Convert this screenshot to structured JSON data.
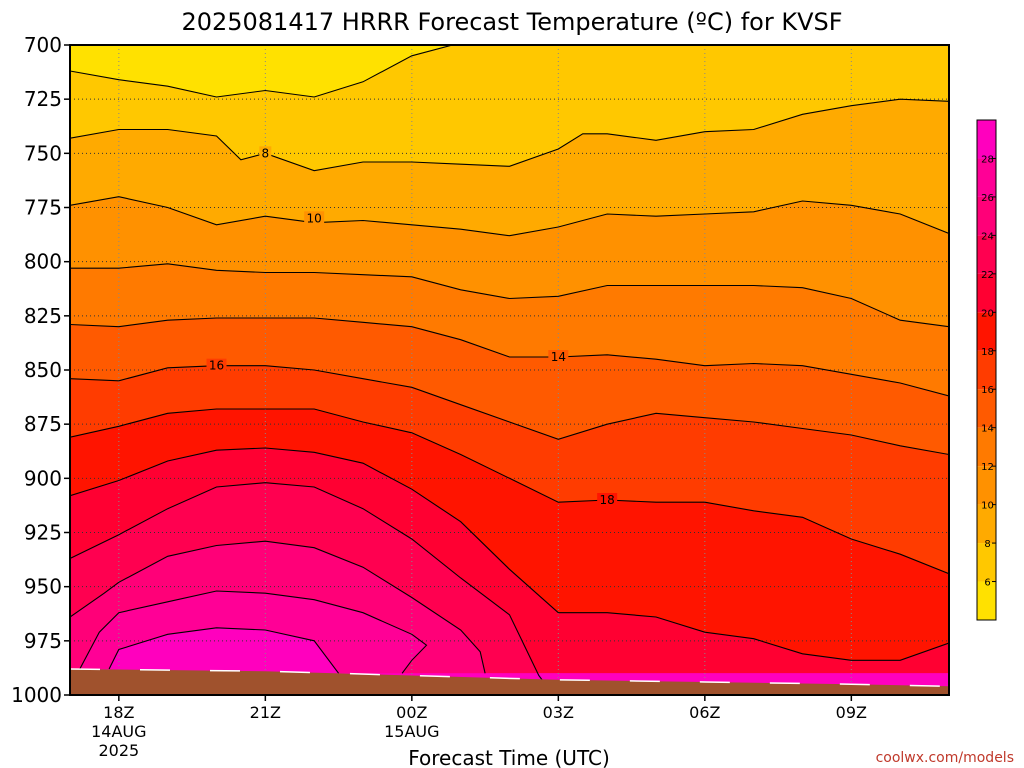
{
  "chart_data": {
    "type": "contour",
    "title": "2025081417 HRRR Forecast Temperature (ºC) for KVSF",
    "xlabel": "Forecast Time (UTC)",
    "ylabel": "",
    "credit": "coolwx.com/models",
    "y_axis": {
      "ticks": [
        700,
        725,
        750,
        775,
        800,
        825,
        850,
        875,
        900,
        925,
        950,
        975,
        1000
      ],
      "range": [
        700,
        1000
      ],
      "inverted": true
    },
    "x_axis": {
      "range_hours": [
        -1,
        17
      ],
      "ticks": [
        {
          "hour": 0,
          "label": "18Z",
          "sub1": "14AUG",
          "sub2": "2025"
        },
        {
          "hour": 3,
          "label": "21Z",
          "sub1": "",
          "sub2": ""
        },
        {
          "hour": 6,
          "label": "00Z",
          "sub1": "15AUG",
          "sub2": ""
        },
        {
          "hour": 9,
          "label": "03Z",
          "sub1": "",
          "sub2": ""
        },
        {
          "hour": 12,
          "label": "06Z",
          "sub1": "",
          "sub2": ""
        },
        {
          "hour": 15,
          "label": "09Z",
          "sub1": "",
          "sub2": ""
        }
      ]
    },
    "grid": true,
    "colorbar": {
      "ticks": [
        6,
        8,
        10,
        12,
        14,
        16,
        18,
        20,
        22,
        24,
        26,
        28
      ],
      "range": [
        4,
        30
      ],
      "levels": [
        {
          "min": 4,
          "max": 6,
          "color": "#ffe100"
        },
        {
          "min": 6,
          "max": 8,
          "color": "#ffc800"
        },
        {
          "min": 8,
          "max": 10,
          "color": "#ffaa00"
        },
        {
          "min": 10,
          "max": 12,
          "color": "#ff9100"
        },
        {
          "min": 12,
          "max": 14,
          "color": "#ff7a00"
        },
        {
          "min": 14,
          "max": 16,
          "color": "#ff5a00"
        },
        {
          "min": 16,
          "max": 18,
          "color": "#ff3c00"
        },
        {
          "min": 18,
          "max": 20,
          "color": "#ff1400"
        },
        {
          "min": 20,
          "max": 22,
          "color": "#ff0032"
        },
        {
          "min": 22,
          "max": 24,
          "color": "#ff0050"
        },
        {
          "min": 24,
          "max": 26,
          "color": "#ff0078"
        },
        {
          "min": 26,
          "max": 28,
          "color": "#ff0096"
        },
        {
          "min": 28,
          "max": 30,
          "color": "#ff00be"
        }
      ]
    },
    "isotherms": [
      {
        "value": 6,
        "points": [
          [
            -1,
            712
          ],
          [
            0,
            716
          ],
          [
            1,
            719
          ],
          [
            2,
            724
          ],
          [
            3,
            721
          ],
          [
            4,
            724
          ],
          [
            5,
            717
          ],
          [
            6,
            705
          ],
          [
            7,
            699
          ]
        ]
      },
      {
        "value": 8,
        "labeled": true,
        "label_at": [
          3,
          750
        ],
        "points": [
          [
            -1,
            743
          ],
          [
            0,
            739
          ],
          [
            1,
            739
          ],
          [
            2,
            742
          ],
          [
            2.5,
            753
          ],
          [
            3,
            750
          ],
          [
            4,
            758
          ],
          [
            5,
            754
          ],
          [
            6,
            754
          ],
          [
            7,
            755
          ],
          [
            8,
            756
          ],
          [
            9,
            748
          ],
          [
            9.5,
            741
          ],
          [
            10,
            741
          ],
          [
            11,
            744
          ],
          [
            12,
            740
          ],
          [
            13,
            739
          ],
          [
            14,
            732
          ],
          [
            15,
            728
          ],
          [
            16,
            725
          ],
          [
            17,
            726
          ]
        ]
      },
      {
        "value": 10,
        "labeled": true,
        "label_at": [
          4,
          780
        ],
        "points": [
          [
            -1,
            774
          ],
          [
            0,
            770
          ],
          [
            1,
            775
          ],
          [
            2,
            783
          ],
          [
            3,
            779
          ],
          [
            4,
            782
          ],
          [
            5,
            781
          ],
          [
            6,
            783
          ],
          [
            7,
            785
          ],
          [
            8,
            788
          ],
          [
            9,
            784
          ],
          [
            10,
            778
          ],
          [
            11,
            779
          ],
          [
            12,
            778
          ],
          [
            13,
            777
          ],
          [
            14,
            772
          ],
          [
            15,
            774
          ],
          [
            16,
            778
          ],
          [
            17,
            787
          ]
        ]
      },
      {
        "value": 12,
        "points": [
          [
            -1,
            803
          ],
          [
            0,
            803
          ],
          [
            1,
            801
          ],
          [
            2,
            804
          ],
          [
            3,
            805
          ],
          [
            4,
            805
          ],
          [
            5,
            806
          ],
          [
            6,
            807
          ],
          [
            7,
            813
          ],
          [
            8,
            817
          ],
          [
            9,
            816
          ],
          [
            10,
            811
          ],
          [
            11,
            811
          ],
          [
            12,
            811
          ],
          [
            13,
            811
          ],
          [
            14,
            812
          ],
          [
            15,
            817
          ],
          [
            16,
            827
          ],
          [
            17,
            830
          ]
        ]
      },
      {
        "value": 14,
        "labeled": true,
        "label_at": [
          9,
          844
        ],
        "points": [
          [
            -1,
            829
          ],
          [
            0,
            830
          ],
          [
            1,
            827
          ],
          [
            2,
            826
          ],
          [
            3,
            826
          ],
          [
            4,
            826
          ],
          [
            5,
            828
          ],
          [
            6,
            830
          ],
          [
            7,
            836
          ],
          [
            8,
            844
          ],
          [
            9,
            844
          ],
          [
            10,
            843
          ],
          [
            11,
            845
          ],
          [
            12,
            848
          ],
          [
            13,
            847
          ],
          [
            14,
            848
          ],
          [
            15,
            852
          ],
          [
            16,
            856
          ],
          [
            17,
            862
          ]
        ]
      },
      {
        "value": 16,
        "labeled": true,
        "label_at": [
          2,
          848
        ],
        "points": [
          [
            -1,
            854
          ],
          [
            0,
            855
          ],
          [
            1,
            849
          ],
          [
            2,
            848
          ],
          [
            3,
            848
          ],
          [
            4,
            850
          ],
          [
            5,
            854
          ],
          [
            6,
            858
          ],
          [
            7,
            866
          ],
          [
            8,
            874
          ],
          [
            9,
            882
          ],
          [
            10,
            875
          ],
          [
            11,
            870
          ],
          [
            12,
            872
          ],
          [
            13,
            874
          ],
          [
            14,
            877
          ],
          [
            15,
            880
          ],
          [
            16,
            885
          ],
          [
            17,
            889
          ]
        ]
      },
      {
        "value": 18,
        "labeled": true,
        "label_at": [
          10,
          910
        ],
        "points": [
          [
            -1,
            881
          ],
          [
            0,
            876
          ],
          [
            1,
            870
          ],
          [
            2,
            868
          ],
          [
            3,
            868
          ],
          [
            4,
            868
          ],
          [
            5,
            874
          ],
          [
            6,
            879
          ],
          [
            7,
            889
          ],
          [
            8,
            900
          ],
          [
            9,
            911
          ],
          [
            10,
            910
          ],
          [
            11,
            911
          ],
          [
            12,
            911
          ],
          [
            13,
            915
          ],
          [
            14,
            918
          ],
          [
            15,
            928
          ],
          [
            16,
            935
          ],
          [
            17,
            944
          ]
        ]
      },
      {
        "value": 20,
        "points": [
          [
            -1,
            908
          ],
          [
            0,
            901
          ],
          [
            1,
            892
          ],
          [
            2,
            887
          ],
          [
            3,
            886
          ],
          [
            4,
            888
          ],
          [
            5,
            893
          ],
          [
            6,
            905
          ],
          [
            7,
            920
          ],
          [
            8,
            942
          ],
          [
            9,
            962
          ],
          [
            10,
            962
          ],
          [
            11,
            964
          ],
          [
            12,
            971
          ],
          [
            13,
            974
          ],
          [
            14,
            981
          ],
          [
            15,
            984
          ],
          [
            16,
            984
          ],
          [
            17,
            976
          ]
        ]
      },
      {
        "value": 22,
        "points": [
          [
            -1,
            937
          ],
          [
            0,
            926
          ],
          [
            1,
            914
          ],
          [
            2,
            904
          ],
          [
            3,
            902
          ],
          [
            4,
            904
          ],
          [
            5,
            914
          ],
          [
            6,
            928
          ],
          [
            7,
            946
          ],
          [
            8,
            963
          ],
          [
            8.3,
            977
          ],
          [
            8.6,
            991
          ],
          [
            8.7,
            994
          ]
        ]
      },
      {
        "value": 24,
        "points": [
          [
            -1,
            964
          ],
          [
            -0.3,
            953
          ],
          [
            0,
            948
          ],
          [
            1,
            936
          ],
          [
            2,
            931
          ],
          [
            3,
            929
          ],
          [
            4,
            932
          ],
          [
            5,
            941
          ],
          [
            6,
            955
          ],
          [
            7,
            970
          ],
          [
            7.4,
            980
          ],
          [
            7.5,
            990
          ]
        ]
      },
      {
        "value": 26,
        "points": [
          [
            -0.8,
            988
          ],
          [
            -0.4,
            971
          ],
          [
            0,
            962
          ],
          [
            1,
            957
          ],
          [
            2,
            952
          ],
          [
            3,
            953
          ],
          [
            4,
            956
          ],
          [
            5,
            962
          ],
          [
            6,
            972
          ],
          [
            6.3,
            977
          ],
          [
            6,
            984
          ],
          [
            5.8,
            990
          ]
        ]
      },
      {
        "value": 28,
        "points": [
          [
            -0.2,
            988
          ],
          [
            0,
            979
          ],
          [
            1,
            972
          ],
          [
            2,
            969
          ],
          [
            3,
            970
          ],
          [
            4,
            975
          ],
          [
            4.5,
            990
          ]
        ]
      }
    ],
    "surface": {
      "label": "",
      "color": "#a0522d",
      "points": [
        [
          -1,
          988
        ],
        [
          3,
          989
        ],
        [
          6,
          991
        ],
        [
          9,
          993
        ],
        [
          12,
          994
        ],
        [
          15,
          995
        ],
        [
          17,
          996
        ]
      ]
    }
  }
}
